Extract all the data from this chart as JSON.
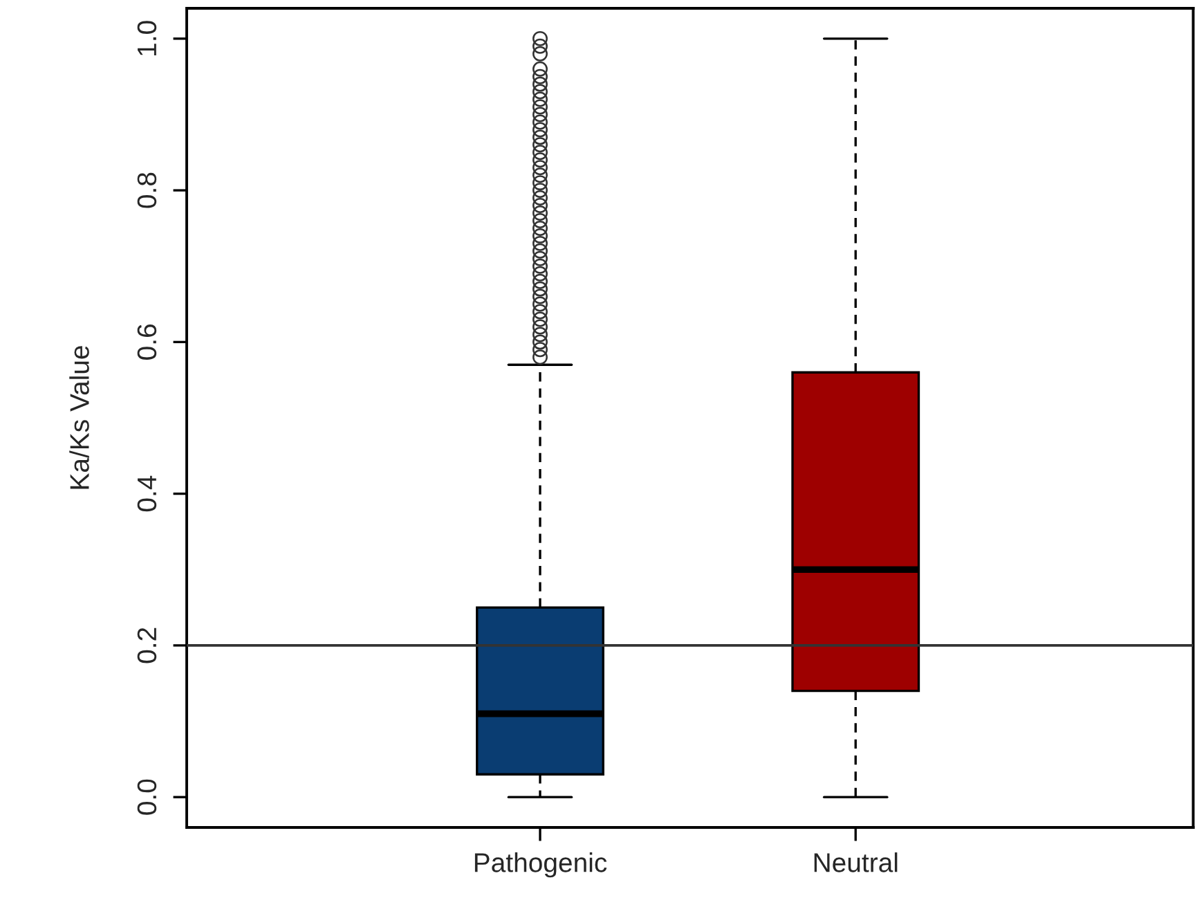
{
  "chart_data": {
    "type": "box",
    "ylabel": "Ka/Ks Value",
    "categories": [
      "Pathogenic",
      "Neutral"
    ],
    "colors": [
      "#0a3d72",
      "#9e0000"
    ],
    "boxes": [
      {
        "low": 0.0,
        "q1": 0.03,
        "median": 0.11,
        "q3": 0.25,
        "high": 0.57,
        "outliers": [
          0.58,
          0.59,
          0.6,
          0.61,
          0.62,
          0.63,
          0.64,
          0.65,
          0.66,
          0.67,
          0.68,
          0.69,
          0.7,
          0.71,
          0.72,
          0.73,
          0.74,
          0.75,
          0.76,
          0.77,
          0.78,
          0.79,
          0.8,
          0.81,
          0.82,
          0.83,
          0.84,
          0.85,
          0.86,
          0.87,
          0.88,
          0.89,
          0.9,
          0.91,
          0.92,
          0.93,
          0.94,
          0.95,
          0.96,
          0.98,
          0.99,
          1.0
        ]
      },
      {
        "low": 0.0,
        "q1": 0.14,
        "median": 0.3,
        "q3": 0.56,
        "high": 1.0
      }
    ],
    "ylim": [
      -0.04,
      1.04
    ],
    "yticks": [
      {
        "value": 0,
        "label": "0.0"
      },
      {
        "value": 0.2,
        "label": "0.2"
      },
      {
        "value": 0.4,
        "label": "0.4"
      },
      {
        "value": 0.6,
        "label": "0.6"
      },
      {
        "value": 0.8,
        "label": "0.8"
      },
      {
        "value": 1,
        "label": "1.0"
      }
    ],
    "ref_lines": [
      {
        "axis": "y",
        "value": 0.2,
        "color": "#333333"
      }
    ],
    "grid": false
  }
}
